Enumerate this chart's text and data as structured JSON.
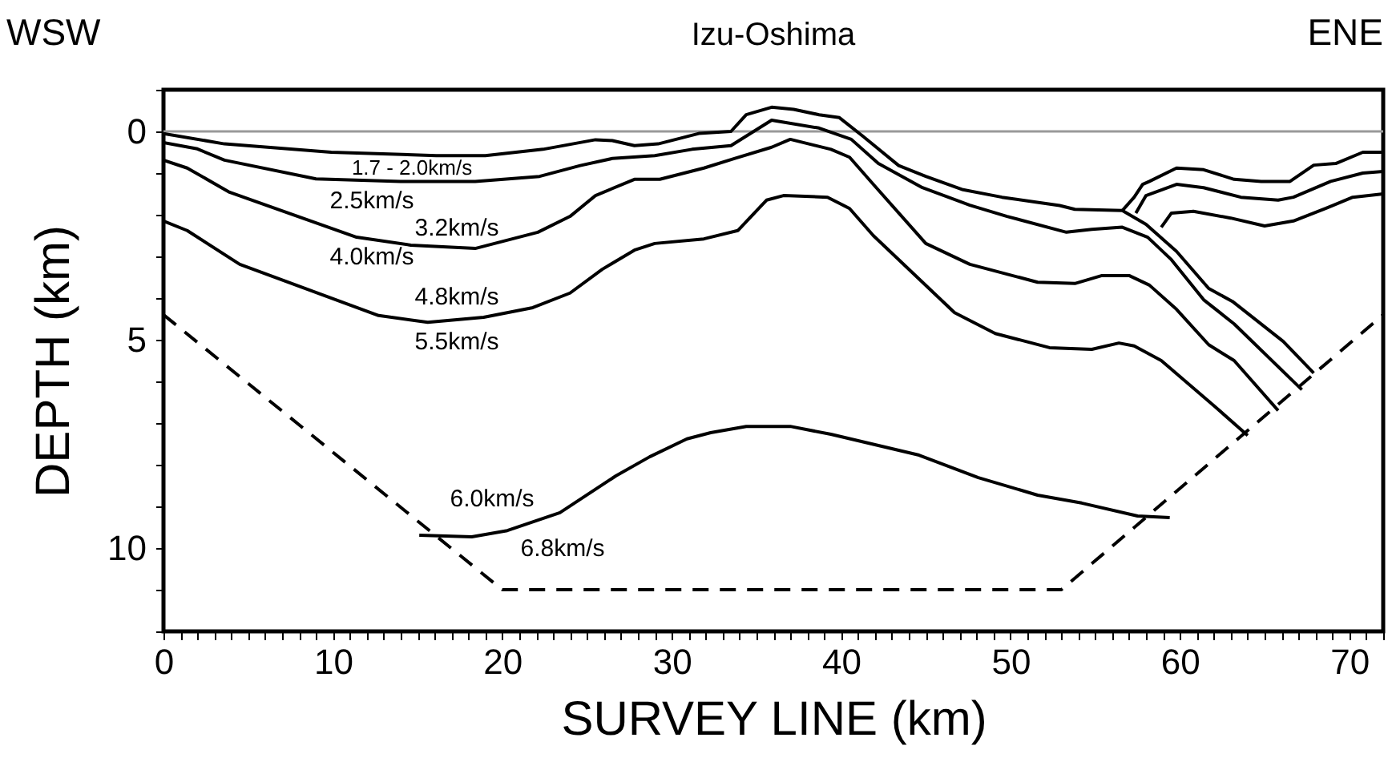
{
  "chart_data": {
    "type": "line",
    "title": "Izu-Oshima",
    "xlabel": "SURVEY LINE (km)",
    "ylabel": "DEPTH (km)",
    "annotations": [
      "WSW",
      "ENE",
      "1.7 - 2.0km/s",
      "2.5km/s",
      "3.2km/s",
      "4.0km/s",
      "4.8km/s",
      "5.5km/s",
      "6.0km/s",
      "6.8km/s"
    ],
    "xlim": [
      0,
      72
    ],
    "ylim": [
      12,
      -1
    ],
    "xticks": [
      0,
      {
        "value": 1,
        "label": null
      },
      {
        "value": 2,
        "label": null
      },
      {
        "value": 3,
        "label": null
      },
      {
        "value": 4,
        "label": null
      },
      {
        "value": 5,
        "label": null
      },
      {
        "value": 6,
        "label": null
      },
      {
        "value": 7,
        "label": null
      },
      {
        "value": 8,
        "label": null
      },
      {
        "value": 9,
        "label": null
      },
      10,
      {
        "value": 11,
        "label": null
      },
      {
        "value": 12,
        "label": null
      },
      {
        "value": 13,
        "label": null
      },
      {
        "value": 14,
        "label": null
      },
      {
        "value": 15,
        "label": null
      },
      {
        "value": 16,
        "label": null
      },
      {
        "value": 17,
        "label": null
      },
      {
        "value": 18,
        "label": null
      },
      {
        "value": 19,
        "label": null
      },
      20,
      {
        "value": 21,
        "label": null
      },
      {
        "value": 22,
        "label": null
      },
      {
        "value": 23,
        "label": null
      },
      {
        "value": 24,
        "label": null
      },
      {
        "value": 25,
        "label": null
      },
      {
        "value": 26,
        "label": null
      },
      {
        "value": 27,
        "label": null
      },
      {
        "value": 28,
        "label": null
      },
      {
        "value": 29,
        "label": null
      },
      30,
      {
        "value": 31,
        "label": null
      },
      {
        "value": 32,
        "label": null
      },
      {
        "value": 33,
        "label": null
      },
      {
        "value": 34,
        "label": null
      },
      {
        "value": 35,
        "label": null
      },
      {
        "value": 36,
        "label": null
      },
      {
        "value": 37,
        "label": null
      },
      {
        "value": 38,
        "label": null
      },
      {
        "value": 39,
        "label": null
      },
      40,
      {
        "value": 41,
        "label": null
      },
      {
        "value": 42,
        "label": null
      },
      {
        "value": 43,
        "label": null
      },
      {
        "value": 44,
        "label": null
      },
      {
        "value": 45,
        "label": null
      },
      {
        "value": 46,
        "label": null
      },
      {
        "value": 47,
        "label": null
      },
      {
        "value": 48,
        "label": null
      },
      {
        "value": 49,
        "label": null
      },
      50,
      {
        "value": 51,
        "label": null
      },
      {
        "value": 52,
        "label": null
      },
      {
        "value": 53,
        "label": null
      },
      {
        "value": 54,
        "label": null
      },
      {
        "value": 55,
        "label": null
      },
      {
        "value": 56,
        "label": null
      },
      {
        "value": 57,
        "label": null
      },
      {
        "value": 58,
        "label": null
      },
      {
        "value": 59,
        "label": null
      },
      60,
      {
        "value": 61,
        "label": null
      },
      {
        "value": 62,
        "label": null
      },
      {
        "value": 63,
        "label": null
      },
      {
        "value": 64,
        "label": null
      },
      {
        "value": 65,
        "label": null
      },
      {
        "value": 66,
        "label": null
      },
      {
        "value": 67,
        "label": null
      },
      {
        "value": 68,
        "label": null
      },
      {
        "value": 69,
        "label": null
      },
      70,
      {
        "value": 71,
        "label": null
      },
      {
        "value": 72,
        "label": null
      }
    ],
    "yticks": [
      {
        "value": -1,
        "label": null
      },
      0,
      {
        "value": 1,
        "label": null
      },
      {
        "value": 2,
        "label": null
      },
      {
        "value": 3,
        "label": null
      },
      {
        "value": 4,
        "label": null
      },
      5,
      {
        "value": 6,
        "label": null
      },
      {
        "value": 7,
        "label": null
      },
      {
        "value": 8,
        "label": null
      },
      {
        "value": 9,
        "label": null
      },
      10,
      {
        "value": 11,
        "label": null
      },
      {
        "value": 12,
        "label": null
      }
    ],
    "ref_lines": [
      {
        "axis": "y",
        "value": 0,
        "color": "#999999"
      }
    ],
    "series": [
      {
        "color": "#000000",
        "x": [
          0,
          3.6,
          9.9,
          16.1,
          19,
          22.4,
          25.5,
          26.5,
          27.8,
          29.2,
          31.6,
          33.5,
          34.4,
          35.9,
          37.2,
          38.7,
          39.9,
          41.3,
          43.4,
          45,
          47.2,
          49.5,
          52.9,
          53.8,
          56.6,
          58,
          59.8,
          61.7,
          63.1,
          66.1,
          67.9
        ],
        "values": [
          0.05,
          0.3,
          0.5,
          0.58,
          0.58,
          0.43,
          0.2,
          0.22,
          0.34,
          0.3,
          0.05,
          0,
          -0.4,
          -0.58,
          -0.53,
          -0.4,
          -0.33,
          0.12,
          0.82,
          1.08,
          1.4,
          1.58,
          1.78,
          1.87,
          1.9,
          2.23,
          2.88,
          3.77,
          4.08,
          5.04,
          5.8
        ]
      },
      {
        "color": "#000000",
        "x": [
          56.6,
          57.3,
          57.8,
          58.2,
          59.8,
          61.4,
          63.2,
          64.8,
          66.5,
          67.9,
          69.2,
          70.8,
          72
        ],
        "values": [
          1.9,
          1.58,
          1.27,
          1.2,
          0.88,
          0.92,
          1.15,
          1.2,
          1.2,
          0.81,
          0.77,
          0.5,
          0.5
        ]
      },
      {
        "color": "#000000",
        "x": [
          0,
          2,
          3.6,
          9,
          14,
          18.4,
          22.2,
          24.6,
          26.5,
          29,
          31.2,
          33.5,
          35.9,
          38.7,
          40.6,
          42.2,
          44.8,
          47.6,
          49.8,
          53.3,
          54.8,
          56.6,
          58.1,
          59.5,
          61.4,
          63.2,
          67.2
        ],
        "values": [
          0.27,
          0.42,
          0.69,
          1.14,
          1.2,
          1.2,
          1.08,
          0.82,
          0.65,
          0.58,
          0.43,
          0.34,
          -0.27,
          -0.08,
          0.19,
          0.77,
          1.35,
          1.77,
          2.04,
          2.42,
          2.35,
          2.3,
          2.54,
          3.08,
          4.04,
          4.62,
          6.2
        ]
      },
      {
        "color": "#000000",
        "x": [
          57.4,
          58,
          59.8,
          61.4,
          63.6,
          65.8,
          66.7,
          68.9,
          70.8,
          72
        ],
        "values": [
          1.96,
          1.54,
          1.27,
          1.35,
          1.58,
          1.65,
          1.58,
          1.2,
          1.0,
          0.96
        ]
      },
      {
        "color": "#000000",
        "x": [
          0,
          1.4,
          3.9,
          11.4,
          14.6,
          18.4,
          22.1,
          24,
          25.5,
          27.8,
          29.3,
          31.9,
          33.7,
          35.9,
          37,
          39.4,
          40.5,
          41.9,
          45,
          47.6,
          51.6,
          53.8,
          55.4,
          57,
          58.2,
          59.8,
          61.7,
          63.2,
          65.8
        ],
        "values": [
          0.69,
          0.88,
          1.46,
          2.54,
          2.73,
          2.81,
          2.42,
          2.04,
          1.54,
          1.15,
          1.15,
          0.88,
          0.65,
          0.38,
          0.19,
          0.43,
          0.62,
          1.27,
          2.69,
          3.19,
          3.62,
          3.65,
          3.46,
          3.46,
          3.69,
          4.27,
          5.12,
          5.5,
          6.7
        ]
      },
      {
        "color": "#000000",
        "x": [
          58.9,
          59.5,
          60.8,
          63,
          65,
          66.7,
          68.6,
          70.2,
          72
        ],
        "values": [
          2.3,
          1.96,
          1.92,
          2.08,
          2.27,
          2.15,
          1.85,
          1.58,
          1.5
        ]
      },
      {
        "color": "#000000",
        "x": [
          0,
          1.4,
          4.5,
          12.7,
          15.6,
          18.9,
          21.8,
          24,
          25.9,
          27.8,
          29,
          31.9,
          33.9,
          35.6,
          36.6,
          39.2,
          40.5,
          41.9,
          46.7,
          49.1,
          52.3,
          54.8,
          56.4,
          57.3,
          58.9,
          62,
          64
        ],
        "values": [
          2.15,
          2.38,
          3.19,
          4.42,
          4.58,
          4.46,
          4.23,
          3.88,
          3.31,
          2.85,
          2.69,
          2.58,
          2.38,
          1.65,
          1.54,
          1.58,
          1.85,
          2.5,
          4.35,
          4.85,
          5.19,
          5.23,
          5.08,
          5.15,
          5.5,
          6.58,
          7.3
        ]
      },
      {
        "color": "#000000",
        "x": [
          15.1,
          18.2,
          20.3,
          23.4,
          26.7,
          28.7,
          30.9,
          32.3,
          34.4,
          37,
          39.4,
          44.6,
          48.1,
          51.6,
          54.2,
          57.5,
          59.4
        ],
        "values": [
          9.69,
          9.73,
          9.58,
          9.15,
          8.27,
          7.81,
          7.38,
          7.23,
          7.08,
          7.08,
          7.27,
          7.77,
          8.31,
          8.73,
          8.92,
          9.23,
          9.27
        ]
      },
      {
        "color": "#000000",
        "line_style": "dashed",
        "x": [
          0,
          20,
          53,
          72
        ],
        "values": [
          4.4,
          11,
          11,
          4.4
        ]
      }
    ]
  }
}
